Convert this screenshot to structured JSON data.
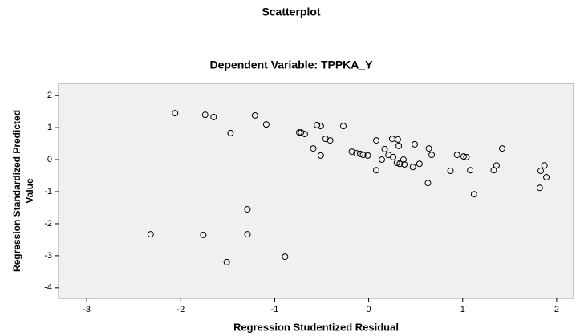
{
  "chart_data": {
    "type": "scatter",
    "title": "Scatterplot",
    "subtitle": "Dependent Variable: TPPKA_Y",
    "x_label": "Regression Studentized Residual",
    "y_label": [
      "Regression Standardized Predicted",
      "Value"
    ],
    "xlim": [
      -3.3,
      2.18
    ],
    "xticks": [
      -3,
      -2,
      -1,
      0,
      1,
      2
    ],
    "ylim": [
      -4.33,
      2.38
    ],
    "yticks": [
      2,
      1,
      0,
      -1,
      -2,
      -3,
      -4
    ],
    "color": "#000000",
    "background": "#f0f0f0",
    "x": [
      -2.06,
      -1.74,
      -1.65,
      -1.47,
      -1.21,
      -1.09,
      -0.74,
      -0.72,
      -0.68,
      -0.55,
      -0.51,
      -0.27,
      -0.46,
      -0.41,
      -0.59,
      -0.51,
      -0.18,
      -0.13,
      -0.09,
      -0.06,
      -0.01,
      0.08,
      0.17,
      0.21,
      0.25,
      0.31,
      0.32,
      0.14,
      0.26,
      0.3,
      0.33,
      0.37,
      0.38,
      0.08,
      0.47,
      0.54,
      0.49,
      0.64,
      0.67,
      0.63,
      0.87,
      0.94,
      1.01,
      1.04,
      1.08,
      1.12,
      1.33,
      1.36,
      1.42,
      1.82,
      1.83,
      1.87,
      1.89,
      -2.32,
      -1.76,
      -1.29,
      -1.29,
      -1.51,
      -0.89
    ],
    "y": [
      1.45,
      1.4,
      1.33,
      0.83,
      1.38,
      1.1,
      0.85,
      0.85,
      0.8,
      1.08,
      1.05,
      1.05,
      0.65,
      0.6,
      0.35,
      0.13,
      0.25,
      0.2,
      0.18,
      0.15,
      0.13,
      0.6,
      0.33,
      0.15,
      0.65,
      0.63,
      0.43,
      0.0,
      0.08,
      -0.1,
      -0.13,
      0.0,
      -0.15,
      -0.33,
      -0.23,
      -0.13,
      0.48,
      0.35,
      0.15,
      -0.73,
      -0.35,
      0.15,
      0.1,
      0.08,
      -0.33,
      -1.08,
      -0.33,
      -0.18,
      0.35,
      -0.88,
      -0.35,
      -0.18,
      -0.55,
      -2.33,
      -2.35,
      -1.55,
      -2.33,
      -3.2,
      -3.03
    ]
  }
}
